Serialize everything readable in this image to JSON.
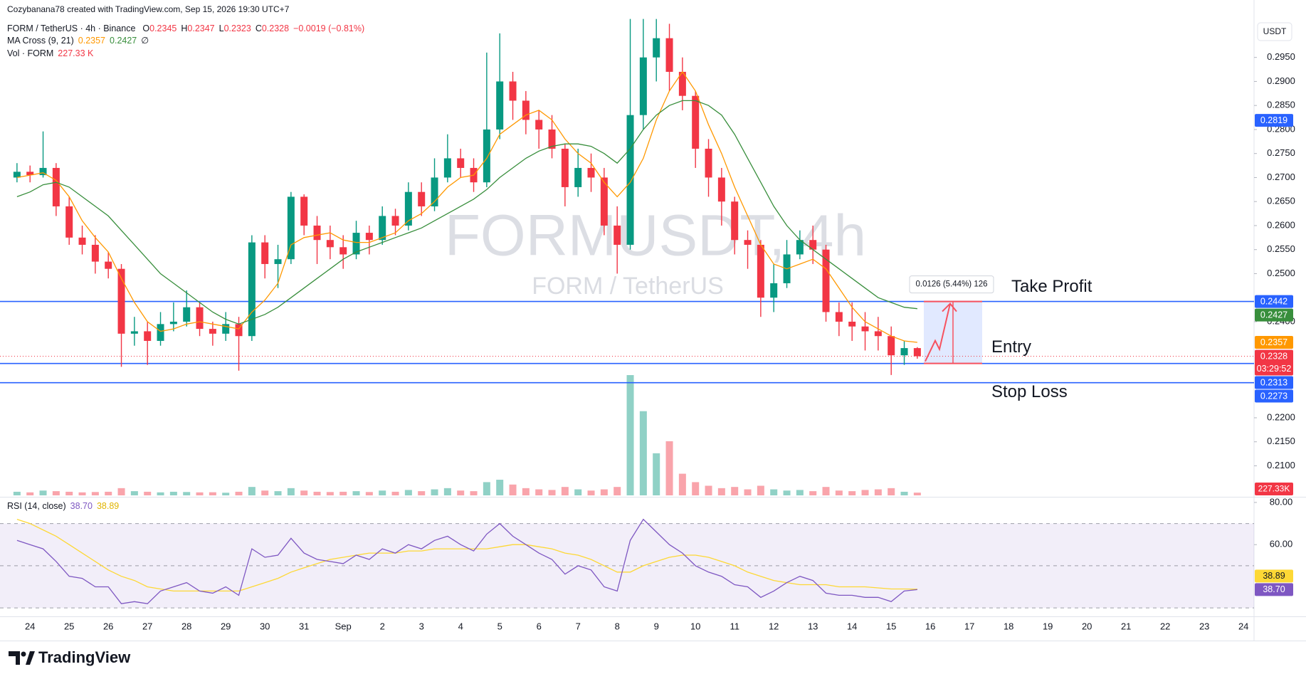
{
  "chart_data": {
    "type": "candlestick",
    "attribution": "Cozybanana78 created with TradingView.com, Sep 15, 2026 19:30 UTC+7",
    "title": "FORM / TetherUS · 4h · Binance",
    "legend_ohlc": [
      {
        "label": "O",
        "value": 0.2345
      },
      {
        "label": "H",
        "value": 0.2347
      },
      {
        "label": "L",
        "value": 0.2323
      },
      {
        "label": "C",
        "value": 0.2328
      }
    ],
    "change": "−0.0019 (−0.81%)",
    "watermark": "FORMUSDT, 4h",
    "watermark_sub": "FORM / TetherUS",
    "currency": "USDT",
    "up_color": "#089981",
    "down_color": "#f23645",
    "ylim": [
      0.2037,
      0.3031
    ],
    "yticks": [
      {
        "value": 0.295,
        "label": "0.2950"
      },
      {
        "value": 0.29,
        "label": "0.2900"
      },
      {
        "value": 0.285,
        "label": "0.2850"
      },
      {
        "value": 0.28,
        "label": "0.2800"
      },
      {
        "value": 0.275,
        "label": "0.2750"
      },
      {
        "value": 0.27,
        "label": "0.2700"
      },
      {
        "value": 0.265,
        "label": "0.2650"
      },
      {
        "value": 0.26,
        "label": "0.2600"
      },
      {
        "value": 0.255,
        "label": "0.2550"
      },
      {
        "value": 0.25,
        "label": "0.2500"
      },
      {
        "value": 0.24,
        "label": "0.2400"
      },
      {
        "value": 0.22,
        "label": "0.2200"
      },
      {
        "value": 0.215,
        "label": "0.2150"
      },
      {
        "value": 0.21,
        "label": "0.2100"
      }
    ],
    "candles": {
      "open": [
        0.27,
        0.2712,
        0.2705,
        0.272,
        0.264,
        0.2575,
        0.256,
        0.2525,
        0.251,
        0.2375,
        0.238,
        0.236,
        0.2395,
        0.24,
        0.243,
        0.2385,
        0.2375,
        0.2395,
        0.237,
        0.2565,
        0.252,
        0.253,
        0.266,
        0.26,
        0.257,
        0.2555,
        0.254,
        0.2585,
        0.257,
        0.262,
        0.26,
        0.267,
        0.264,
        0.27,
        0.274,
        0.272,
        0.269,
        0.28,
        0.29,
        0.286,
        0.282,
        0.28,
        0.276,
        0.268,
        0.272,
        0.27,
        0.26,
        0.256,
        0.283,
        0.295,
        0.299,
        0.292,
        0.287,
        0.276,
        0.27,
        0.265,
        0.257,
        0.256,
        0.245,
        0.248,
        0.254,
        0.257,
        0.255,
        0.242,
        0.24,
        0.239,
        0.238,
        0.237,
        0.233,
        0.2345
      ],
      "high": [
        0.273,
        0.2725,
        0.2796,
        0.273,
        0.266,
        0.26,
        0.258,
        0.2545,
        0.252,
        0.241,
        0.24,
        0.242,
        0.244,
        0.2465,
        0.244,
        0.24,
        0.242,
        0.241,
        0.258,
        0.258,
        0.256,
        0.267,
        0.2665,
        0.262,
        0.26,
        0.258,
        0.261,
        0.26,
        0.264,
        0.2635,
        0.269,
        0.269,
        0.274,
        0.279,
        0.276,
        0.274,
        0.296,
        0.3,
        0.292,
        0.288,
        0.284,
        0.283,
        0.277,
        0.276,
        0.275,
        0.272,
        0.264,
        0.303,
        0.303,
        0.303,
        0.302,
        0.295,
        0.288,
        0.278,
        0.272,
        0.266,
        0.259,
        0.257,
        0.252,
        0.257,
        0.259,
        0.26,
        0.256,
        0.244,
        0.244,
        0.242,
        0.241,
        0.239,
        0.236,
        0.2347
      ],
      "low": [
        0.269,
        0.269,
        0.27,
        0.262,
        0.256,
        0.254,
        0.25,
        0.249,
        0.2306,
        0.235,
        0.231,
        0.235,
        0.238,
        0.239,
        0.237,
        0.235,
        0.236,
        0.2298,
        0.236,
        0.249,
        0.247,
        0.252,
        0.258,
        0.252,
        0.253,
        0.251,
        0.253,
        0.254,
        0.256,
        0.258,
        0.259,
        0.262,
        0.263,
        0.269,
        0.27,
        0.267,
        0.268,
        0.278,
        0.282,
        0.279,
        0.276,
        0.274,
        0.264,
        0.266,
        0.267,
        0.258,
        0.25,
        0.255,
        0.28,
        0.29,
        0.288,
        0.284,
        0.272,
        0.266,
        0.26,
        0.254,
        0.251,
        0.241,
        0.242,
        0.247,
        0.253,
        0.252,
        0.24,
        0.237,
        0.236,
        0.234,
        0.234,
        0.2289,
        0.231,
        0.2323
      ],
      "close": [
        0.2712,
        0.2705,
        0.272,
        0.264,
        0.2575,
        0.256,
        0.2525,
        0.251,
        0.2375,
        0.238,
        0.236,
        0.2395,
        0.24,
        0.243,
        0.2385,
        0.2375,
        0.2395,
        0.237,
        0.2565,
        0.252,
        0.253,
        0.266,
        0.26,
        0.257,
        0.2555,
        0.254,
        0.2585,
        0.257,
        0.262,
        0.26,
        0.267,
        0.264,
        0.27,
        0.274,
        0.272,
        0.269,
        0.28,
        0.29,
        0.286,
        0.282,
        0.28,
        0.276,
        0.268,
        0.272,
        0.27,
        0.26,
        0.256,
        0.283,
        0.295,
        0.299,
        0.292,
        0.287,
        0.276,
        0.27,
        0.265,
        0.257,
        0.256,
        0.245,
        0.248,
        0.254,
        0.257,
        0.255,
        0.242,
        0.24,
        0.239,
        0.238,
        0.237,
        0.233,
        0.2345,
        0.2328
      ]
    },
    "ma_cross": {
      "name": "MA Cross (9, 21)",
      "suffix": "∅",
      "series": [
        {
          "color": "#ff9800",
          "values": [
            0.27,
            0.2705,
            0.271,
            0.2694,
            0.266,
            0.261,
            0.2575,
            0.2545,
            0.249,
            0.244,
            0.24,
            0.238,
            0.2385,
            0.2395,
            0.24,
            0.2395,
            0.239,
            0.2385,
            0.242,
            0.2445,
            0.248,
            0.256,
            0.2575,
            0.258,
            0.2585,
            0.257,
            0.2565,
            0.2565,
            0.2575,
            0.2585,
            0.261,
            0.2625,
            0.265,
            0.268,
            0.27,
            0.2705,
            0.274,
            0.279,
            0.281,
            0.283,
            0.284,
            0.282,
            0.278,
            0.275,
            0.273,
            0.269,
            0.266,
            0.269,
            0.274,
            0.282,
            0.288,
            0.292,
            0.288,
            0.281,
            0.275,
            0.268,
            0.262,
            0.256,
            0.252,
            0.251,
            0.252,
            0.253,
            0.251,
            0.247,
            0.243,
            0.24,
            0.2385,
            0.237,
            0.236,
            0.2357
          ]
        },
        {
          "color": "#388e3c",
          "values": [
            0.266,
            0.267,
            0.2685,
            0.269,
            0.268,
            0.266,
            0.264,
            0.262,
            0.259,
            0.256,
            0.253,
            0.25,
            0.248,
            0.246,
            0.244,
            0.242,
            0.2405,
            0.2395,
            0.2405,
            0.2415,
            0.243,
            0.245,
            0.247,
            0.249,
            0.251,
            0.253,
            0.2545,
            0.2555,
            0.2565,
            0.2575,
            0.2585,
            0.2595,
            0.261,
            0.2625,
            0.264,
            0.2655,
            0.2675,
            0.27,
            0.272,
            0.274,
            0.2755,
            0.2765,
            0.277,
            0.277,
            0.2765,
            0.275,
            0.273,
            0.276,
            0.28,
            0.283,
            0.285,
            0.286,
            0.286,
            0.285,
            0.283,
            0.279,
            0.274,
            0.269,
            0.264,
            0.26,
            0.257,
            0.255,
            0.253,
            0.251,
            0.249,
            0.247,
            0.245,
            0.244,
            0.243,
            0.2427
          ]
        }
      ]
    },
    "volume": {
      "name": "Vol · FORM",
      "legend": {
        "value": 227330,
        "label": "227.33 K"
      },
      "marker": {
        "value": 227330,
        "label": "227.33K",
        "color": "#f23645"
      },
      "values": [
        300000,
        250000,
        400000,
        350000,
        300000,
        250000,
        280000,
        300000,
        600000,
        350000,
        300000,
        250000,
        300000,
        280000,
        250000,
        260000,
        220000,
        300000,
        700000,
        400000,
        350000,
        600000,
        400000,
        300000,
        280000,
        300000,
        350000,
        280000,
        400000,
        300000,
        450000,
        350000,
        500000,
        600000,
        400000,
        350000,
        1100000,
        1300000,
        900000,
        600000,
        500000,
        450000,
        700000,
        500000,
        400000,
        500000,
        700000,
        10000000,
        7000000,
        3500000,
        4500000,
        1800000,
        1100000,
        800000,
        600000,
        700000,
        500000,
        800000,
        500000,
        400000,
        450000,
        350000,
        700000,
        400000,
        350000,
        450000,
        500000,
        600000,
        300000,
        227330
      ]
    },
    "markers": [
      {
        "value": 0.2819,
        "color": "#2962ff"
      },
      {
        "value": 0.2442,
        "color": "#2962ff"
      },
      {
        "value": 0.2427,
        "color": "#388e3c"
      },
      {
        "value": 0.2357,
        "color": "#ff9800"
      },
      {
        "value": 0.2328,
        "color": "#f23645",
        "countdown": "03:29:52"
      },
      {
        "value": 0.2313,
        "color": "#2962ff"
      },
      {
        "value": 0.2273,
        "color": "#2962ff"
      }
    ],
    "levels": [
      {
        "value": 0.2442,
        "label": "Take Profit"
      },
      {
        "value": 0.2313,
        "label": "Entry"
      },
      {
        "value": 0.2273,
        "label": "Stop Loss"
      }
    ],
    "level_color": "#2962ff",
    "position": {
      "label": "0.0126 (5.44%) 126"
    },
    "rsi": {
      "name": "RSI (14, close)",
      "ylim": [
        26,
        82
      ],
      "yticks": [
        {
          "value": 80,
          "label": "80.00"
        },
        {
          "value": 60,
          "label": "60.00"
        }
      ],
      "levels": [
        70,
        50,
        30
      ],
      "legend": [
        {
          "value": 38.7,
          "label": "38.70",
          "color": "#7e57c2"
        },
        {
          "value": 38.89,
          "label": "38.89",
          "color": "#fdd835"
        }
      ],
      "series": [
        {
          "color": "#7e57c2",
          "values": [
            62,
            60,
            58,
            52,
            45,
            44,
            40,
            40,
            32,
            33,
            32,
            38,
            40,
            42,
            38,
            37,
            40,
            36,
            58,
            54,
            55,
            63,
            56,
            53,
            52,
            51,
            55,
            53,
            58,
            56,
            60,
            58,
            62,
            64,
            60,
            57,
            65,
            70,
            64,
            60,
            56,
            53,
            46,
            50,
            48,
            40,
            38,
            62,
            72,
            66,
            60,
            56,
            50,
            47,
            45,
            41,
            40,
            35,
            38,
            42,
            45,
            43,
            37,
            36,
            36,
            35,
            35,
            33,
            38,
            38.7
          ]
        },
        {
          "color": "#fdd835",
          "values": [
            72,
            70,
            67,
            64,
            60,
            56,
            52,
            48,
            45,
            43,
            40,
            39,
            38,
            38,
            38,
            38,
            38,
            38,
            40,
            42,
            44,
            47,
            49,
            51,
            53,
            54,
            55,
            56,
            56,
            56,
            57,
            57,
            58,
            58,
            58,
            58,
            58,
            59,
            60,
            60,
            59,
            58,
            56,
            55,
            53,
            50,
            47,
            47,
            50,
            52,
            54,
            55,
            55,
            54,
            52,
            50,
            47,
            45,
            43,
            42,
            41,
            41,
            41,
            40,
            40,
            40,
            39.5,
            39,
            39,
            38.89
          ]
        }
      ]
    },
    "x_labels": [
      "24",
      "25",
      "26",
      "27",
      "28",
      "29",
      "30",
      "31",
      "Sep",
      "2",
      "3",
      "4",
      "5",
      "6",
      "7",
      "8",
      "9",
      "10",
      "11",
      "12",
      "13",
      "14",
      "15",
      "16",
      "17",
      "18",
      "19",
      "20",
      "21",
      "22",
      "23",
      "24"
    ],
    "footer": "TradingView"
  }
}
